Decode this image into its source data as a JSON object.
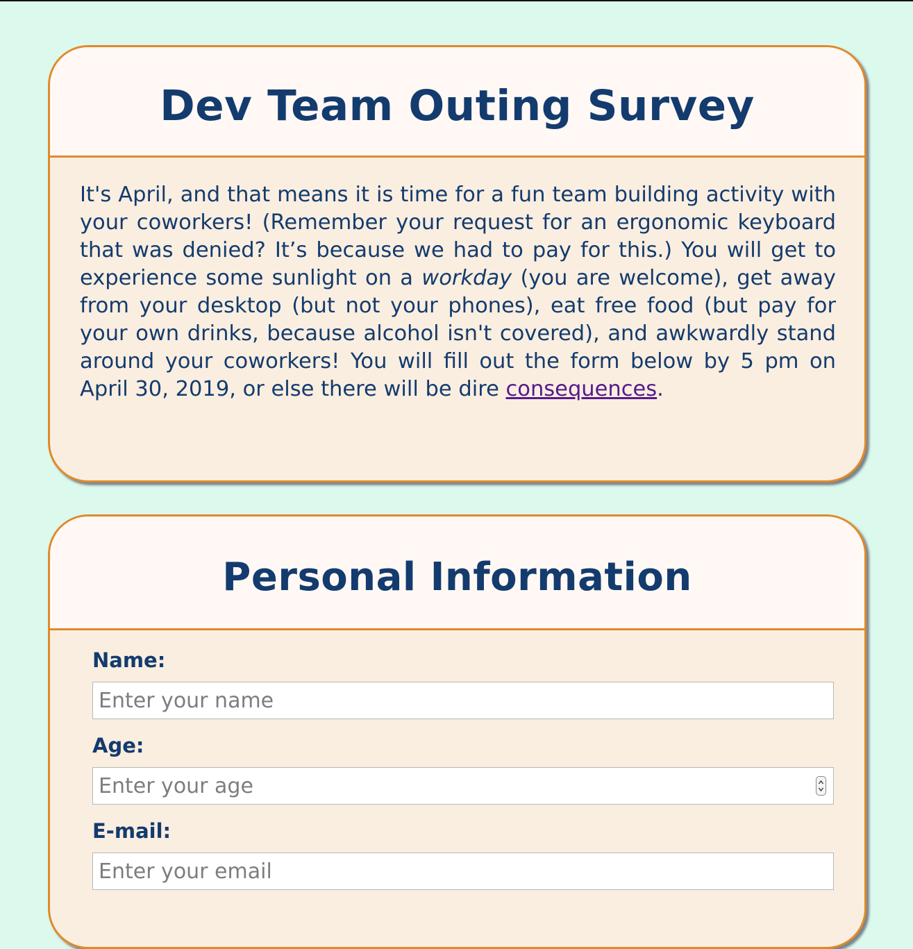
{
  "intro": {
    "title": "Dev Team Outing Survey",
    "text_part1": "It's April, and that means it is time for a fun team building activity with your coworkers! (Remember your request for an ergonomic keyboard that was denied? It’s because we had to pay for this.) You will get to experience some sunlight on a ",
    "text_emphasis": "workday",
    "text_part2": " (you are welcome), get away from your desktop (but not your phones), eat free food (but pay for your own drinks, because alcohol isn't covered), and awkwardly stand around your coworkers! You will fill out the form below by 5 pm on April 30, 2019, or else there will be dire ",
    "link_text": "consequences",
    "text_end": "."
  },
  "personal": {
    "title": "Personal Information",
    "fields": [
      {
        "label": "Name:",
        "placeholder": "Enter your name",
        "value": ""
      },
      {
        "label": "Age:",
        "placeholder": "Enter your age",
        "value": ""
      },
      {
        "label": "E-mail:",
        "placeholder": "Enter your email",
        "value": ""
      }
    ]
  },
  "colors": {
    "page_background": "#dcf9ee",
    "card_border": "#e08a2a",
    "card_header_background": "#fff8f5",
    "card_body_background": "#faeee0",
    "text": "#133b6e",
    "link": "#551a8b"
  },
  "icons": {
    "number_spinner": "up-down-arrows-icon"
  }
}
